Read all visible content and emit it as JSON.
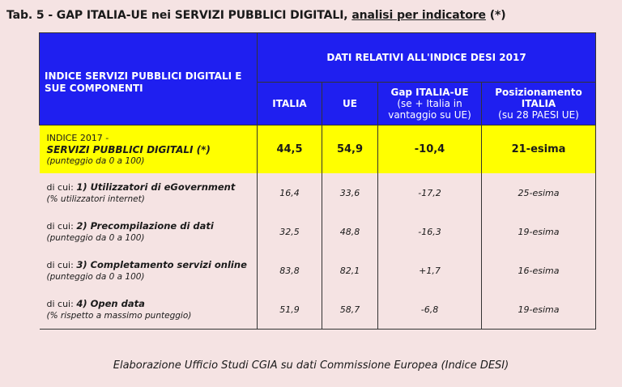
{
  "title": {
    "prefix": "Tab. 5 - GAP ITALIA-UE nei SERVIZI PUBBLICI DIGITALI, ",
    "underlined": "analisi per indicatore",
    "suffix": " (*)"
  },
  "header": {
    "indicator": "INDICE SERVIZI PUBBLICI DIGITALI E SUE COMPONENTI",
    "group": "DATI RELATIVI ALL'INDICE DESI 2017",
    "col_italia": "ITALIA",
    "col_ue": "UE",
    "col_gap": "Gap ITALIA-UE",
    "col_gap_note": "(se + Italia in vantaggio su UE)",
    "col_pos": "Posizionamento ITALIA",
    "col_pos_note": "(su 28 PAESI UE)"
  },
  "index_row": {
    "line1": "INDICE 2017 -",
    "line2": "SERVIZI PUBBLICI DIGITALI (*)",
    "line3": "(punteggio da 0 a 100)",
    "italia": "44,5",
    "ue": "54,9",
    "gap": "-10,4",
    "pos": "21-esima"
  },
  "components": [
    {
      "prefix": "di cui: ",
      "name": "1) Utilizzatori di eGovernment",
      "note": "(% utilizzatori internet)",
      "italia": "16,4",
      "ue": "33,6",
      "gap": "-17,2",
      "pos": "25-esima"
    },
    {
      "prefix": "di cui: ",
      "name": "2) Precompilazione di dati",
      "note": "(punteggio da 0 a 100)",
      "italia": "32,5",
      "ue": "48,8",
      "gap": "-16,3",
      "pos": "19-esima"
    },
    {
      "prefix": "di cui: ",
      "name": "3) Completamento servizi online",
      "note": "(punteggio da 0 a 100)",
      "italia": "83,8",
      "ue": "82,1",
      "gap": "+1,7",
      "pos": "16-esima"
    },
    {
      "prefix": "di cui: ",
      "name": "4) Open data",
      "note": "(% rispetto a massimo punteggio)",
      "italia": "51,9",
      "ue": "58,7",
      "gap": "-6,8",
      "pos": "19-esima"
    }
  ],
  "source": "Elaborazione Ufficio Studi CGIA su dati Commissione Europea (Indice DESI)",
  "colors": {
    "header_bg": "#1f1ff0",
    "highlight_bg": "#ffff00",
    "page_bg": "#f5e3e3"
  }
}
